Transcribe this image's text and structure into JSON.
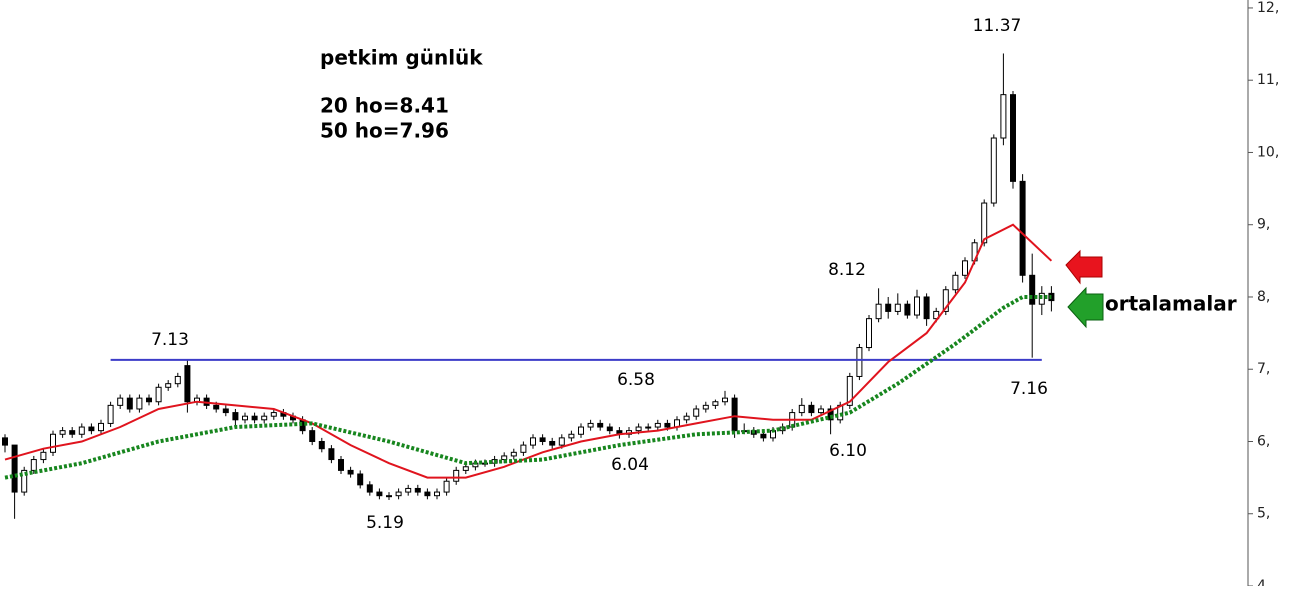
{
  "chart_data": {
    "type": "candlestick",
    "title": "petkim günlük",
    "notes": [
      "20 ho=8.41",
      "50 ho=7.96"
    ],
    "callout": "ortalamalar",
    "ylim": [
      4,
      12.11
    ],
    "yticks": [
      {
        "value": 12,
        "label": "12,"
      },
      {
        "value": 11,
        "label": "11,"
      },
      {
        "value": 10,
        "label": "10,"
      },
      {
        "value": 9,
        "label": "9,"
      },
      {
        "value": 8,
        "label": "8,"
      },
      {
        "value": 7,
        "label": "7,"
      },
      {
        "value": 6,
        "label": "6,"
      },
      {
        "value": 5,
        "label": "5,"
      },
      {
        "value": 4,
        "label": "4,"
      }
    ],
    "ohlc": [
      [
        6.05,
        6.1,
        5.85,
        5.95
      ],
      [
        5.95,
        5.95,
        4.93,
        5.3
      ],
      [
        5.3,
        5.65,
        5.25,
        5.6
      ],
      [
        5.6,
        5.8,
        5.55,
        5.75
      ],
      [
        5.75,
        5.9,
        5.7,
        5.85
      ],
      [
        5.85,
        6.15,
        5.8,
        6.1
      ],
      [
        6.1,
        6.2,
        6.05,
        6.15
      ],
      [
        6.15,
        6.2,
        6.05,
        6.1
      ],
      [
        6.1,
        6.25,
        6.05,
        6.2
      ],
      [
        6.2,
        6.25,
        6.1,
        6.15
      ],
      [
        6.15,
        6.3,
        6.1,
        6.25
      ],
      [
        6.25,
        6.55,
        6.2,
        6.5
      ],
      [
        6.5,
        6.65,
        6.45,
        6.6
      ],
      [
        6.6,
        6.65,
        6.4,
        6.45
      ],
      [
        6.45,
        6.65,
        6.4,
        6.6
      ],
      [
        6.6,
        6.65,
        6.5,
        6.55
      ],
      [
        6.55,
        6.8,
        6.5,
        6.75
      ],
      [
        6.75,
        6.85,
        6.7,
        6.8
      ],
      [
        6.8,
        6.95,
        6.75,
        6.9
      ],
      [
        7.05,
        7.13,
        6.4,
        6.55
      ],
      [
        6.55,
        6.65,
        6.5,
        6.6
      ],
      [
        6.6,
        6.65,
        6.45,
        6.5
      ],
      [
        6.5,
        6.55,
        6.4,
        6.45
      ],
      [
        6.45,
        6.5,
        6.35,
        6.4
      ],
      [
        6.4,
        6.45,
        6.2,
        6.3
      ],
      [
        6.3,
        6.4,
        6.25,
        6.35
      ],
      [
        6.35,
        6.4,
        6.25,
        6.3
      ],
      [
        6.3,
        6.4,
        6.25,
        6.35
      ],
      [
        6.35,
        6.45,
        6.3,
        6.4
      ],
      [
        6.4,
        6.45,
        6.3,
        6.35
      ],
      [
        6.35,
        6.4,
        6.25,
        6.3
      ],
      [
        6.3,
        6.35,
        6.1,
        6.15
      ],
      [
        6.15,
        6.2,
        5.95,
        6.0
      ],
      [
        6.0,
        6.05,
        5.85,
        5.9
      ],
      [
        5.9,
        5.95,
        5.7,
        5.75
      ],
      [
        5.75,
        5.8,
        5.55,
        5.6
      ],
      [
        5.6,
        5.65,
        5.5,
        5.55
      ],
      [
        5.55,
        5.6,
        5.35,
        5.4
      ],
      [
        5.4,
        5.45,
        5.25,
        5.3
      ],
      [
        5.3,
        5.35,
        5.2,
        5.25
      ],
      [
        5.25,
        5.3,
        5.19,
        5.25
      ],
      [
        5.25,
        5.35,
        5.2,
        5.3
      ],
      [
        5.3,
        5.4,
        5.25,
        5.35
      ],
      [
        5.35,
        5.4,
        5.25,
        5.3
      ],
      [
        5.3,
        5.35,
        5.2,
        5.25
      ],
      [
        5.25,
        5.35,
        5.2,
        5.3
      ],
      [
        5.3,
        5.5,
        5.25,
        5.45
      ],
      [
        5.45,
        5.65,
        5.4,
        5.6
      ],
      [
        5.6,
        5.7,
        5.55,
        5.65
      ],
      [
        5.65,
        5.75,
        5.6,
        5.7
      ],
      [
        5.7,
        5.75,
        5.65,
        5.7
      ],
      [
        5.7,
        5.8,
        5.65,
        5.75
      ],
      [
        5.75,
        5.85,
        5.7,
        5.8
      ],
      [
        5.8,
        5.9,
        5.75,
        5.85
      ],
      [
        5.85,
        6.0,
        5.8,
        5.95
      ],
      [
        5.95,
        6.1,
        5.9,
        6.05
      ],
      [
        6.05,
        6.1,
        5.95,
        6.0
      ],
      [
        6.0,
        6.05,
        5.9,
        5.95
      ],
      [
        5.95,
        6.1,
        5.9,
        6.05
      ],
      [
        6.05,
        6.15,
        6.0,
        6.1
      ],
      [
        6.1,
        6.25,
        6.05,
        6.2
      ],
      [
        6.2,
        6.3,
        6.15,
        6.25
      ],
      [
        6.25,
        6.3,
        6.15,
        6.2
      ],
      [
        6.2,
        6.25,
        6.1,
        6.15
      ],
      [
        6.15,
        6.2,
        6.04,
        6.1
      ],
      [
        6.1,
        6.2,
        6.05,
        6.15
      ],
      [
        6.15,
        6.25,
        6.1,
        6.2
      ],
      [
        6.2,
        6.25,
        6.15,
        6.2
      ],
      [
        6.2,
        6.3,
        6.15,
        6.25
      ],
      [
        6.25,
        6.3,
        6.15,
        6.2
      ],
      [
        6.2,
        6.35,
        6.15,
        6.3
      ],
      [
        6.3,
        6.4,
        6.25,
        6.35
      ],
      [
        6.35,
        6.5,
        6.3,
        6.45
      ],
      [
        6.45,
        6.55,
        6.4,
        6.5
      ],
      [
        6.5,
        6.58,
        6.45,
        6.55
      ],
      [
        6.55,
        6.7,
        6.5,
        6.6
      ],
      [
        6.6,
        6.65,
        6.05,
        6.15
      ],
      [
        6.15,
        6.25,
        6.1,
        6.15
      ],
      [
        6.15,
        6.2,
        6.05,
        6.1
      ],
      [
        6.1,
        6.15,
        6.0,
        6.05
      ],
      [
        6.05,
        6.2,
        6.0,
        6.15
      ],
      [
        6.15,
        6.25,
        6.1,
        6.2
      ],
      [
        6.2,
        6.45,
        6.15,
        6.4
      ],
      [
        6.4,
        6.6,
        6.35,
        6.5
      ],
      [
        6.5,
        6.55,
        6.35,
        6.4
      ],
      [
        6.4,
        6.5,
        6.35,
        6.45
      ],
      [
        6.45,
        6.5,
        6.1,
        6.3
      ],
      [
        6.3,
        6.55,
        6.25,
        6.5
      ],
      [
        6.5,
        6.95,
        6.45,
        6.9
      ],
      [
        6.9,
        7.35,
        6.85,
        7.3
      ],
      [
        7.3,
        7.75,
        7.25,
        7.7
      ],
      [
        7.7,
        8.12,
        7.65,
        7.9
      ],
      [
        7.9,
        8.0,
        7.7,
        7.8
      ],
      [
        7.8,
        8.05,
        7.75,
        7.9
      ],
      [
        7.9,
        7.95,
        7.7,
        7.75
      ],
      [
        7.75,
        8.1,
        7.7,
        8.0
      ],
      [
        8.0,
        8.05,
        7.6,
        7.7
      ],
      [
        7.7,
        7.85,
        7.65,
        7.8
      ],
      [
        7.8,
        8.15,
        7.75,
        8.1
      ],
      [
        8.1,
        8.35,
        8.05,
        8.3
      ],
      [
        8.3,
        8.55,
        8.25,
        8.5
      ],
      [
        8.5,
        8.8,
        8.45,
        8.75
      ],
      [
        8.75,
        9.35,
        8.7,
        9.3
      ],
      [
        9.3,
        10.25,
        9.25,
        10.2
      ],
      [
        10.2,
        11.37,
        10.1,
        10.8
      ],
      [
        10.8,
        10.85,
        9.5,
        9.6
      ],
      [
        9.6,
        9.7,
        8.2,
        8.3
      ],
      [
        8.3,
        8.6,
        7.16,
        7.9
      ],
      [
        7.9,
        8.15,
        7.75,
        8.05
      ],
      [
        8.05,
        8.15,
        7.8,
        7.95
      ]
    ],
    "series": [
      {
        "color": "#e0141e",
        "dashed": false,
        "x": [
          0,
          4,
          8,
          12,
          16,
          20,
          24,
          28,
          32,
          36,
          40,
          44,
          48,
          52,
          56,
          60,
          64,
          68,
          72,
          76,
          80,
          84,
          88,
          92,
          96,
          100,
          102,
          105,
          109
        ],
        "values": [
          5.75,
          5.9,
          6.0,
          6.2,
          6.45,
          6.55,
          6.5,
          6.45,
          6.25,
          5.95,
          5.7,
          5.5,
          5.5,
          5.65,
          5.85,
          6.0,
          6.1,
          6.15,
          6.25,
          6.35,
          6.3,
          6.3,
          6.55,
          7.1,
          7.5,
          8.2,
          8.8,
          9.0,
          8.5
        ]
      },
      {
        "color": "#17861e",
        "dashed": true,
        "x": [
          0,
          8,
          16,
          24,
          32,
          40,
          48,
          56,
          64,
          72,
          80,
          88,
          93,
          99,
          104,
          106,
          109
        ],
        "values": [
          5.5,
          5.7,
          6.0,
          6.2,
          6.25,
          6.0,
          5.7,
          5.75,
          5.95,
          6.1,
          6.15,
          6.4,
          6.8,
          7.35,
          7.85,
          8.0,
          8.0
        ]
      }
    ],
    "hline": {
      "value": 7.13,
      "from": 11,
      "to": 108,
      "color": "#3c3cc8"
    },
    "annotations": [
      "7.13",
      "6.58",
      "6.04",
      "5.19",
      "8.12",
      "6.10",
      "11.37",
      "7.16"
    ]
  }
}
